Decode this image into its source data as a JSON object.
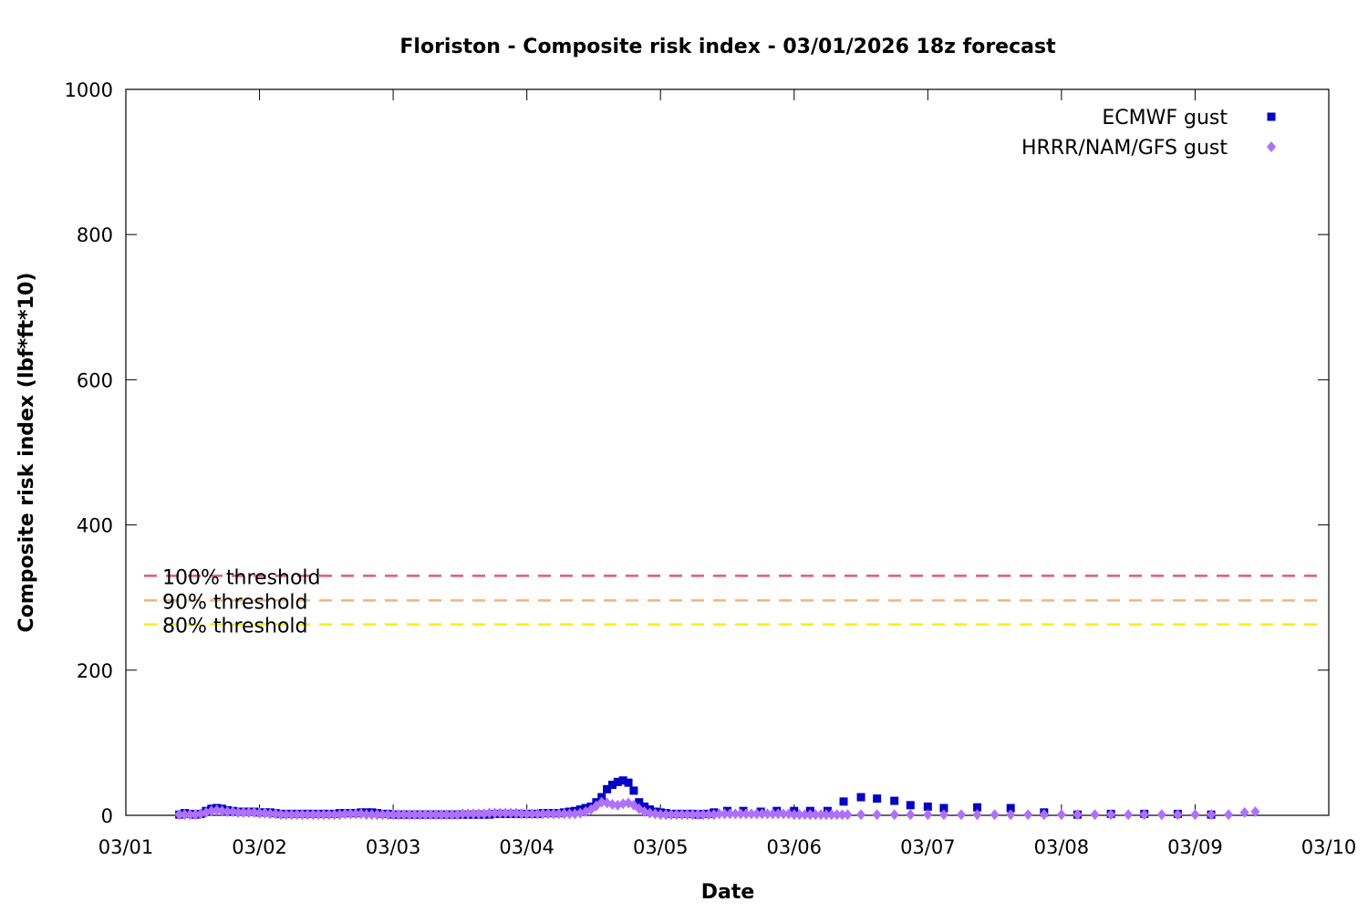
{
  "chart_data": {
    "type": "scatter",
    "title": "Floriston - Composite risk index - 03/01/2026 18z forecast",
    "xlabel": "Date",
    "ylabel": "Composite risk index (lbf*ft*10)",
    "xlim": [
      0,
      9
    ],
    "ylim": [
      0,
      1000
    ],
    "x_unit": "days",
    "x_tick_labels": [
      "03/01",
      "03/02",
      "03/03",
      "03/04",
      "03/05",
      "03/06",
      "03/07",
      "03/08",
      "03/09",
      "03/10"
    ],
    "y_ticks": [
      0,
      200,
      400,
      600,
      800,
      1000
    ],
    "grid": false,
    "legend_position": "top-right",
    "thresholds": [
      {
        "label": "100% threshold",
        "value": 330,
        "color": "#e05a78"
      },
      {
        "label": "90% threshold",
        "value": 296,
        "color": "#f5b27a"
      },
      {
        "label": "80% threshold",
        "value": 263,
        "color": "#ffee00"
      }
    ],
    "series": [
      {
        "name": "ECMWF gust",
        "marker": "square",
        "color": "#0000c8",
        "points": [
          [
            0.4,
            1
          ],
          [
            0.44,
            3
          ],
          [
            0.48,
            2
          ],
          [
            0.52,
            1
          ],
          [
            0.56,
            2
          ],
          [
            0.6,
            6
          ],
          [
            0.64,
            9
          ],
          [
            0.68,
            10
          ],
          [
            0.72,
            9
          ],
          [
            0.76,
            7
          ],
          [
            0.8,
            6
          ],
          [
            0.84,
            5
          ],
          [
            0.88,
            5
          ],
          [
            0.92,
            5
          ],
          [
            0.96,
            5
          ],
          [
            1.0,
            4
          ],
          [
            1.04,
            4
          ],
          [
            1.08,
            4
          ],
          [
            1.12,
            3
          ],
          [
            1.16,
            2
          ],
          [
            1.2,
            2
          ],
          [
            1.24,
            2
          ],
          [
            1.28,
            2
          ],
          [
            1.32,
            2
          ],
          [
            1.36,
            2
          ],
          [
            1.4,
            2
          ],
          [
            1.44,
            2
          ],
          [
            1.48,
            2
          ],
          [
            1.52,
            2
          ],
          [
            1.56,
            2
          ],
          [
            1.6,
            3
          ],
          [
            1.64,
            3
          ],
          [
            1.68,
            3
          ],
          [
            1.72,
            3
          ],
          [
            1.76,
            4
          ],
          [
            1.8,
            4
          ],
          [
            1.84,
            4
          ],
          [
            1.88,
            3
          ],
          [
            1.92,
            2
          ],
          [
            1.96,
            2
          ],
          [
            2.0,
            1
          ],
          [
            2.04,
            1
          ],
          [
            2.08,
            1
          ],
          [
            2.12,
            1
          ],
          [
            2.16,
            1
          ],
          [
            2.2,
            1
          ],
          [
            2.24,
            1
          ],
          [
            2.28,
            1
          ],
          [
            2.32,
            1
          ],
          [
            2.36,
            1
          ],
          [
            2.4,
            1
          ],
          [
            2.44,
            1
          ],
          [
            2.48,
            1
          ],
          [
            2.52,
            1
          ],
          [
            2.56,
            1
          ],
          [
            2.6,
            1
          ],
          [
            2.64,
            1
          ],
          [
            2.68,
            1
          ],
          [
            2.72,
            1
          ],
          [
            2.76,
            2
          ],
          [
            2.8,
            2
          ],
          [
            2.84,
            2
          ],
          [
            2.88,
            2
          ],
          [
            2.92,
            2
          ],
          [
            2.96,
            2
          ],
          [
            3.0,
            2
          ],
          [
            3.04,
            2
          ],
          [
            3.08,
            2
          ],
          [
            3.12,
            3
          ],
          [
            3.16,
            3
          ],
          [
            3.2,
            3
          ],
          [
            3.24,
            3
          ],
          [
            3.28,
            4
          ],
          [
            3.32,
            5
          ],
          [
            3.36,
            6
          ],
          [
            3.4,
            8
          ],
          [
            3.44,
            10
          ],
          [
            3.48,
            12
          ],
          [
            3.52,
            18
          ],
          [
            3.56,
            25
          ],
          [
            3.6,
            36
          ],
          [
            3.64,
            42
          ],
          [
            3.68,
            46
          ],
          [
            3.72,
            48
          ],
          [
            3.76,
            45
          ],
          [
            3.8,
            34
          ],
          [
            3.84,
            18
          ],
          [
            3.88,
            12
          ],
          [
            3.92,
            8
          ],
          [
            3.96,
            5
          ],
          [
            4.0,
            4
          ],
          [
            4.04,
            3
          ],
          [
            4.08,
            2
          ],
          [
            4.12,
            2
          ],
          [
            4.16,
            2
          ],
          [
            4.2,
            2
          ],
          [
            4.24,
            2
          ],
          [
            4.28,
            1
          ],
          [
            4.32,
            2
          ],
          [
            4.36,
            2
          ],
          [
            4.4,
            4
          ],
          [
            4.5,
            6
          ],
          [
            4.62,
            6
          ],
          [
            4.75,
            5
          ],
          [
            4.87,
            6
          ],
          [
            5.0,
            6
          ],
          [
            5.12,
            6
          ],
          [
            5.25,
            6
          ],
          [
            5.37,
            19
          ],
          [
            5.5,
            25
          ],
          [
            5.62,
            23
          ],
          [
            5.75,
            20
          ],
          [
            5.87,
            14
          ],
          [
            6.0,
            12
          ],
          [
            6.12,
            10
          ],
          [
            6.37,
            11
          ],
          [
            6.62,
            10
          ],
          [
            6.87,
            4
          ],
          [
            7.12,
            1
          ],
          [
            7.37,
            2
          ],
          [
            7.62,
            2
          ],
          [
            7.87,
            2
          ],
          [
            8.12,
            1
          ]
        ]
      },
      {
        "name": "HRRR/NAM/GFS gust",
        "marker": "diamond",
        "color": "#b070ff",
        "points": [
          [
            0.4,
            1
          ],
          [
            0.44,
            1
          ],
          [
            0.48,
            1
          ],
          [
            0.52,
            1
          ],
          [
            0.56,
            2
          ],
          [
            0.6,
            4
          ],
          [
            0.64,
            6
          ],
          [
            0.68,
            7
          ],
          [
            0.72,
            6
          ],
          [
            0.76,
            5
          ],
          [
            0.8,
            5
          ],
          [
            0.84,
            4
          ],
          [
            0.88,
            4
          ],
          [
            0.92,
            4
          ],
          [
            0.96,
            4
          ],
          [
            1.0,
            3
          ],
          [
            1.04,
            3
          ],
          [
            1.08,
            2
          ],
          [
            1.12,
            2
          ],
          [
            1.16,
            1
          ],
          [
            1.2,
            1
          ],
          [
            1.24,
            1
          ],
          [
            1.28,
            1
          ],
          [
            1.32,
            1
          ],
          [
            1.36,
            1
          ],
          [
            1.4,
            1
          ],
          [
            1.44,
            1
          ],
          [
            1.48,
            1
          ],
          [
            1.52,
            1
          ],
          [
            1.56,
            1
          ],
          [
            1.6,
            1
          ],
          [
            1.64,
            2
          ],
          [
            1.68,
            2
          ],
          [
            1.72,
            2
          ],
          [
            1.76,
            2
          ],
          [
            1.8,
            1
          ],
          [
            1.84,
            1
          ],
          [
            1.88,
            1
          ],
          [
            1.92,
            1
          ],
          [
            1.96,
            1
          ],
          [
            2.0,
            1
          ],
          [
            2.04,
            1
          ],
          [
            2.08,
            1
          ],
          [
            2.12,
            1
          ],
          [
            2.16,
            1
          ],
          [
            2.2,
            1
          ],
          [
            2.24,
            1
          ],
          [
            2.28,
            1
          ],
          [
            2.32,
            1
          ],
          [
            2.36,
            1
          ],
          [
            2.4,
            1
          ],
          [
            2.44,
            1
          ],
          [
            2.48,
            1
          ],
          [
            2.52,
            2
          ],
          [
            2.56,
            2
          ],
          [
            2.6,
            2
          ],
          [
            2.64,
            2
          ],
          [
            2.68,
            2
          ],
          [
            2.72,
            3
          ],
          [
            2.76,
            3
          ],
          [
            2.8,
            3
          ],
          [
            2.84,
            3
          ],
          [
            2.88,
            3
          ],
          [
            2.92,
            3
          ],
          [
            2.96,
            2
          ],
          [
            3.0,
            2
          ],
          [
            3.04,
            2
          ],
          [
            3.08,
            2
          ],
          [
            3.12,
            2
          ],
          [
            3.16,
            2
          ],
          [
            3.2,
            2
          ],
          [
            3.24,
            2
          ],
          [
            3.28,
            2
          ],
          [
            3.32,
            2
          ],
          [
            3.36,
            2
          ],
          [
            3.4,
            3
          ],
          [
            3.44,
            5
          ],
          [
            3.48,
            8
          ],
          [
            3.52,
            13
          ],
          [
            3.56,
            18
          ],
          [
            3.6,
            17
          ],
          [
            3.64,
            15
          ],
          [
            3.68,
            14
          ],
          [
            3.72,
            16
          ],
          [
            3.76,
            17
          ],
          [
            3.8,
            14
          ],
          [
            3.84,
            9
          ],
          [
            3.88,
            5
          ],
          [
            3.92,
            3
          ],
          [
            3.96,
            2
          ],
          [
            4.0,
            1
          ],
          [
            4.04,
            1
          ],
          [
            4.08,
            1
          ],
          [
            4.12,
            1
          ],
          [
            4.16,
            1
          ],
          [
            4.2,
            1
          ],
          [
            4.24,
            1
          ],
          [
            4.28,
            1
          ],
          [
            4.32,
            1
          ],
          [
            4.36,
            1
          ],
          [
            4.4,
            1
          ],
          [
            4.44,
            2
          ],
          [
            4.48,
            2
          ],
          [
            4.52,
            2
          ],
          [
            4.56,
            2
          ],
          [
            4.6,
            2
          ],
          [
            4.64,
            2
          ],
          [
            4.68,
            2
          ],
          [
            4.72,
            2
          ],
          [
            4.76,
            2
          ],
          [
            4.8,
            2
          ],
          [
            4.84,
            2
          ],
          [
            4.88,
            2
          ],
          [
            4.92,
            2
          ],
          [
            4.96,
            2
          ],
          [
            5.0,
            1
          ],
          [
            5.04,
            1
          ],
          [
            5.08,
            1
          ],
          [
            5.12,
            1
          ],
          [
            5.16,
            1
          ],
          [
            5.2,
            1
          ],
          [
            5.24,
            1
          ],
          [
            5.28,
            1
          ],
          [
            5.32,
            1
          ],
          [
            5.36,
            1
          ],
          [
            5.4,
            1
          ],
          [
            5.5,
            1
          ],
          [
            5.62,
            1
          ],
          [
            5.75,
            1
          ],
          [
            5.87,
            1
          ],
          [
            6.0,
            1
          ],
          [
            6.12,
            1
          ],
          [
            6.25,
            1
          ],
          [
            6.37,
            1
          ],
          [
            6.5,
            1
          ],
          [
            6.62,
            1
          ],
          [
            6.75,
            1
          ],
          [
            6.87,
            1
          ],
          [
            7.0,
            1
          ],
          [
            7.12,
            1
          ],
          [
            7.25,
            1
          ],
          [
            7.37,
            1
          ],
          [
            7.5,
            1
          ],
          [
            7.62,
            1
          ],
          [
            7.75,
            1
          ],
          [
            7.87,
            1
          ],
          [
            8.0,
            1
          ],
          [
            8.12,
            1
          ],
          [
            8.25,
            1
          ],
          [
            8.37,
            4
          ],
          [
            8.45,
            5
          ]
        ]
      }
    ]
  }
}
